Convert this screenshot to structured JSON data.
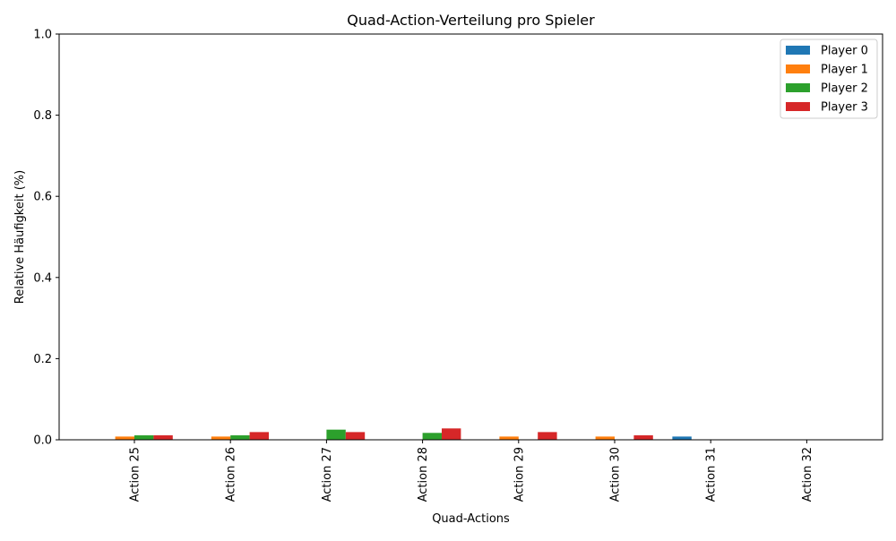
{
  "chart_data": {
    "type": "bar",
    "title": "Quad-Action-Verteilung pro Spieler",
    "xlabel": "Quad-Actions",
    "ylabel": "Relative Häufigkeit (%)",
    "ylim": [
      0,
      1.0
    ],
    "yticks": [
      "0.0",
      "0.2",
      "0.4",
      "0.6",
      "0.8",
      "1.0"
    ],
    "categories": [
      "Action 25",
      "Action 26",
      "Action 27",
      "Action 28",
      "Action 29",
      "Action 30",
      "Action 31",
      "Action 32"
    ],
    "series": [
      {
        "name": "Player 0",
        "color": "#1f77b4",
        "values": [
          0,
          0,
          0,
          0,
          0,
          0,
          0.008,
          0
        ]
      },
      {
        "name": "Player 1",
        "color": "#ff7f0e",
        "values": [
          0.008,
          0.008,
          0,
          0,
          0.008,
          0.008,
          0,
          0
        ]
      },
      {
        "name": "Player 2",
        "color": "#2ca02c",
        "values": [
          0.011,
          0.011,
          0.025,
          0.017,
          0,
          0,
          0,
          0
        ]
      },
      {
        "name": "Player 3",
        "color": "#d62728",
        "values": [
          0.011,
          0.019,
          0.019,
          0.028,
          0.019,
          0.011,
          0,
          0
        ]
      }
    ],
    "legend_position": "top-right",
    "grid": false
  }
}
